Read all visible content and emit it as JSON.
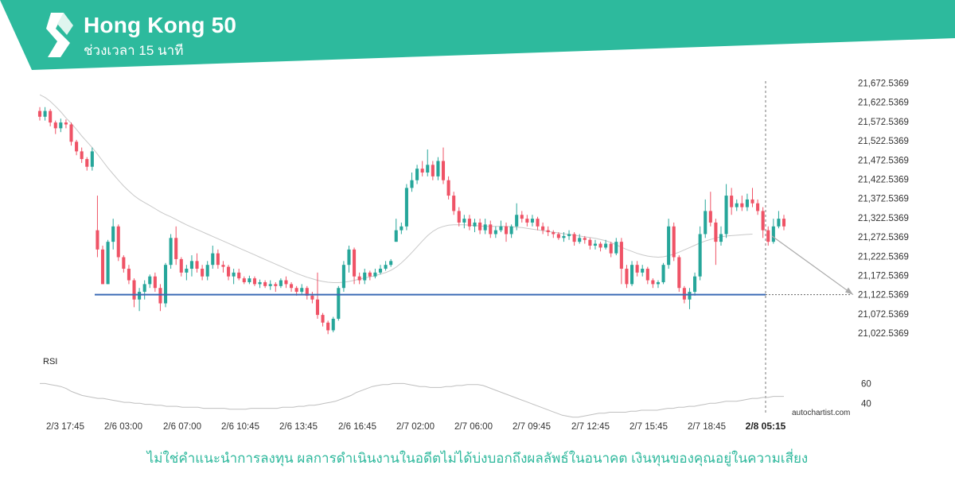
{
  "header": {
    "title": "Hong Kong 50",
    "subtitle": "ช่วงเวลา 15 นาที",
    "band_color": "#2dba9d"
  },
  "chart_data": {
    "type": "candlestick",
    "y_ticks": [
      "21,672.5369",
      "21,622.5369",
      "21,572.5369",
      "21,522.5369",
      "21,472.5369",
      "21,422.5369",
      "21,372.5369",
      "21,322.5369",
      "21,272.5369",
      "21,222.5369",
      "21,172.5369",
      "21,122.5369",
      "21,072.5369",
      "21,022.5369"
    ],
    "y_tick_values": [
      21672.5369,
      21622.5369,
      21572.5369,
      21522.5369,
      21472.5369,
      21422.5369,
      21372.5369,
      21322.5369,
      21272.5369,
      21222.5369,
      21172.5369,
      21122.5369,
      21072.5369,
      21022.5369
    ],
    "ylim": [
      21000,
      21690
    ],
    "x_ticks": [
      "2/3 17:45",
      "2/6 03:00",
      "2/6 07:00",
      "2/6 10:45",
      "2/6 13:45",
      "2/6 16:45",
      "2/7 02:00",
      "2/7 06:00",
      "2/7 09:45",
      "2/7 12:45",
      "2/7 15:45",
      "2/7 18:45",
      "2/8 05:15"
    ],
    "x_highlight": "2/8 05:15",
    "support_level": 21122.5369,
    "colors": {
      "up": "#26a69a",
      "down": "#ef5366",
      "support": "#3b6ab5",
      "ma": "#c8c8c8"
    },
    "candles": [
      [
        21600,
        21585,
        21610,
        21575
      ],
      [
        21585,
        21600,
        21610,
        21575
      ],
      [
        21600,
        21570,
        21605,
        21560
      ],
      [
        21570,
        21555,
        21575,
        21540
      ],
      [
        21555,
        21570,
        21580,
        21545
      ],
      [
        21570,
        21565,
        21578,
        21555
      ],
      [
        21565,
        21520,
        21570,
        21510
      ],
      [
        21520,
        21495,
        21525,
        21485
      ],
      [
        21495,
        21475,
        21505,
        21465
      ],
      [
        21475,
        21455,
        21480,
        21445
      ],
      [
        21455,
        21495,
        21505,
        21445
      ],
      [
        21290,
        21240,
        21380,
        21220
      ],
      [
        21240,
        21150,
        21250,
        21150
      ],
      [
        21150,
        21260,
        21265,
        21150
      ],
      [
        21260,
        21300,
        21320,
        21240
      ],
      [
        21300,
        21220,
        21305,
        21210
      ],
      [
        21220,
        21190,
        21225,
        21180
      ],
      [
        21190,
        21160,
        21200,
        21150
      ],
      [
        21160,
        21110,
        21165,
        21090
      ],
      [
        21110,
        21130,
        21140,
        21080
      ],
      [
        21130,
        21150,
        21160,
        21110
      ],
      [
        21150,
        21170,
        21175,
        21140
      ],
      [
        21170,
        21140,
        21180,
        21130
      ],
      [
        21140,
        21100,
        21150,
        21080
      ],
      [
        21100,
        21200,
        21205,
        21090
      ],
      [
        21200,
        21270,
        21280,
        21190
      ],
      [
        21270,
        21215,
        21300,
        21200
      ],
      [
        21215,
        21180,
        21220,
        21170
      ],
      [
        21180,
        21190,
        21200,
        21160
      ],
      [
        21190,
        21210,
        21225,
        21170
      ],
      [
        21210,
        21190,
        21230,
        21180
      ],
      [
        21190,
        21170,
        21200,
        21160
      ],
      [
        21170,
        21200,
        21210,
        21160
      ],
      [
        21200,
        21230,
        21250,
        21190
      ],
      [
        21230,
        21200,
        21240,
        21190
      ],
      [
        21200,
        21195,
        21210,
        21180
      ],
      [
        21195,
        21170,
        21200,
        21160
      ],
      [
        21170,
        21180,
        21190,
        21150
      ],
      [
        21180,
        21165,
        21190,
        21160
      ],
      [
        21165,
        21155,
        21170,
        21150
      ],
      [
        21155,
        21165,
        21172,
        21150
      ],
      [
        21165,
        21150,
        21170,
        21145
      ],
      [
        21150,
        21155,
        21162,
        21140
      ],
      [
        21155,
        21145,
        21160,
        21140
      ],
      [
        21145,
        21150,
        21160,
        21135
      ],
      [
        21150,
        21145,
        21155,
        21130
      ],
      [
        21145,
        21160,
        21165,
        21140
      ],
      [
        21160,
        21150,
        21170,
        21140
      ],
      [
        21150,
        21140,
        21155,
        21130
      ],
      [
        21140,
        21130,
        21145,
        21120
      ],
      [
        21130,
        21140,
        21150,
        21125
      ],
      [
        21140,
        21120,
        21145,
        21110
      ],
      [
        21120,
        21110,
        21130,
        21100
      ],
      [
        21110,
        21070,
        21180,
        21060
      ],
      [
        21070,
        21050,
        21075,
        21040
      ],
      [
        21050,
        21030,
        21055,
        21020
      ],
      [
        21030,
        21060,
        21065,
        21025
      ],
      [
        21060,
        21140,
        21145,
        21055
      ],
      [
        21140,
        21200,
        21210,
        21130
      ],
      [
        21200,
        21240,
        21250,
        21180
      ],
      [
        21240,
        21170,
        21245,
        21150
      ],
      [
        21170,
        21160,
        21180,
        21150
      ],
      [
        21160,
        21180,
        21190,
        21150
      ],
      [
        21180,
        21170,
        21185,
        21160
      ],
      [
        21170,
        21180,
        21190,
        21165
      ],
      [
        21180,
        21190,
        21200,
        21175
      ],
      [
        21190,
        21200,
        21210,
        21185
      ],
      [
        21200,
        21210,
        21215,
        21195
      ],
      [
        21260,
        21290,
        21320,
        21260
      ],
      [
        21290,
        21300,
        21310,
        21280
      ],
      [
        21300,
        21400,
        21410,
        21290
      ],
      [
        21400,
        21420,
        21440,
        21390
      ],
      [
        21420,
        21450,
        21460,
        21410
      ],
      [
        21450,
        21440,
        21470,
        21430
      ],
      [
        21440,
        21460,
        21500,
        21430
      ],
      [
        21460,
        21430,
        21470,
        21420
      ],
      [
        21430,
        21470,
        21480,
        21420
      ],
      [
        21470,
        21420,
        21505,
        21410
      ],
      [
        21420,
        21380,
        21430,
        21370
      ],
      [
        21380,
        21340,
        21390,
        21330
      ],
      [
        21340,
        21310,
        21350,
        21300
      ],
      [
        21310,
        21320,
        21330,
        21295
      ],
      [
        21320,
        21300,
        21330,
        21290
      ],
      [
        21300,
        21310,
        21320,
        21285
      ],
      [
        21310,
        21290,
        21320,
        21280
      ],
      [
        21290,
        21305,
        21320,
        21280
      ],
      [
        21305,
        21280,
        21315,
        21270
      ],
      [
        21280,
        21290,
        21300,
        21270
      ],
      [
        21290,
        21300,
        21315,
        21285
      ],
      [
        21300,
        21280,
        21310,
        21260
      ],
      [
        21280,
        21300,
        21305,
        21270
      ],
      [
        21300,
        21330,
        21360,
        21290
      ],
      [
        21330,
        21320,
        21340,
        21310
      ],
      [
        21320,
        21310,
        21330,
        21300
      ],
      [
        21310,
        21320,
        21330,
        21300
      ],
      [
        21320,
        21300,
        21325,
        21290
      ],
      [
        21300,
        21290,
        21310,
        21280
      ],
      [
        21290,
        21285,
        21300,
        21275
      ],
      [
        21285,
        21280,
        21290,
        21270
      ],
      [
        21280,
        21270,
        21285,
        21265
      ],
      [
        21270,
        21275,
        21285,
        21260
      ],
      [
        21275,
        21280,
        21290,
        21265
      ],
      [
        21280,
        21260,
        21285,
        21250
      ],
      [
        21260,
        21270,
        21280,
        21255
      ],
      [
        21270,
        21265,
        21275,
        21255
      ],
      [
        21265,
        21250,
        21270,
        21240
      ],
      [
        21250,
        21255,
        21265,
        21240
      ],
      [
        21255,
        21245,
        21260,
        21235
      ],
      [
        21245,
        21255,
        21265,
        21240
      ],
      [
        21255,
        21230,
        21260,
        21220
      ],
      [
        21230,
        21260,
        21270,
        21225
      ],
      [
        21260,
        21190,
        21270,
        21150
      ],
      [
        21190,
        21150,
        21200,
        21140
      ],
      [
        21150,
        21200,
        21210,
        21145
      ],
      [
        21200,
        21180,
        21210,
        21170
      ],
      [
        21180,
        21190,
        21200,
        21170
      ],
      [
        21190,
        21160,
        21195,
        21150
      ],
      [
        21160,
        21150,
        21165,
        21140
      ],
      [
        21150,
        21155,
        21160,
        21140
      ],
      [
        21155,
        21200,
        21205,
        21150
      ],
      [
        21200,
        21300,
        21320,
        21190
      ],
      [
        21300,
        21220,
        21310,
        21210
      ],
      [
        21220,
        21140,
        21225,
        21130
      ],
      [
        21140,
        21110,
        21145,
        21100
      ],
      [
        21110,
        21130,
        21140,
        21085
      ],
      [
        21130,
        21170,
        21180,
        21120
      ],
      [
        21170,
        21280,
        21300,
        21160
      ],
      [
        21280,
        21340,
        21370,
        21270
      ],
      [
        21340,
        21310,
        21390,
        21300
      ],
      [
        21310,
        21260,
        21320,
        21200
      ],
      [
        21260,
        21280,
        21300,
        21250
      ],
      [
        21280,
        21380,
        21410,
        21270
      ],
      [
        21380,
        21350,
        21400,
        21330
      ],
      [
        21350,
        21360,
        21370,
        21340
      ],
      [
        21360,
        21350,
        21380,
        21340
      ],
      [
        21350,
        21370,
        21385,
        21340
      ],
      [
        21370,
        21360,
        21400,
        21350
      ],
      [
        21360,
        21340,
        21370,
        21330
      ],
      [
        21340,
        21290,
        21350,
        21270
      ],
      [
        21290,
        21260,
        21300,
        21250
      ],
      [
        21260,
        21300,
        21320,
        21255
      ],
      [
        21300,
        21320,
        21340,
        21295
      ],
      [
        21320,
        21300,
        21330,
        21290
      ]
    ],
    "ma": [
      21642,
      21635,
      21625,
      21612,
      21598,
      21582,
      21568,
      21552,
      21535,
      21520,
      21505,
      21488,
      21470,
      21452,
      21436,
      21420,
      21405,
      21392,
      21380,
      21370,
      21362,
      21354,
      21346,
      21338,
      21331,
      21325,
      21318,
      21311,
      21304,
      21298,
      21292,
      21286,
      21280,
      21274,
      21268,
      21262,
      21256,
      21250,
      21244,
      21238,
      21232,
      21226,
      21220,
      21214,
      21208,
      21202,
      21196,
      21190,
      21184,
      21178,
      21173,
      21168,
      21164,
      21160,
      21157,
      21155,
      21154,
      21154,
      21155,
      21157,
      21160,
      21163,
      21166,
      21169,
      21172,
      21176,
      21180,
      21186,
      21194,
      21205,
      21218,
      21232,
      21247,
      21262,
      21276,
      21287,
      21295,
      21300,
      21303,
      21304,
      21304,
      21304,
      21303,
      21302,
      21301,
      21300,
      21300,
      21300,
      21300,
      21300,
      21299,
      21298,
      21297,
      21295,
      21293,
      21291,
      21289,
      21287,
      21285,
      21283,
      21281,
      21279,
      21277,
      21275,
      21273,
      21271,
      21269,
      21266,
      21263,
      21258,
      21252,
      21246,
      21240,
      21235,
      21230,
      21226,
      21223,
      21221,
      21220,
      21221,
      21224,
      21228,
      21233,
      21239,
      21245,
      21251,
      21257,
      21262,
      21266,
      21270,
      21273,
      21275,
      21276,
      21277,
      21278,
      21279,
      21280
    ],
    "rsi": {
      "title": "RSI",
      "ticks": [
        "60",
        "40"
      ],
      "tick_values": [
        60,
        40
      ],
      "ylim": [
        25,
        70
      ],
      "values": [
        60,
        60,
        59,
        58,
        57,
        55,
        52,
        50,
        48,
        47,
        46,
        45,
        45,
        44,
        43,
        42,
        41,
        41,
        40,
        40,
        39,
        39,
        38,
        38,
        37,
        37,
        37,
        36,
        36,
        36,
        36,
        35,
        35,
        35,
        35,
        35,
        34,
        34,
        34,
        34,
        35,
        35,
        35,
        35,
        35,
        35,
        36,
        36,
        36,
        37,
        37,
        38,
        38,
        39,
        40,
        41,
        42,
        44,
        46,
        48,
        51,
        53,
        55,
        57,
        58,
        59,
        59,
        60,
        60,
        60,
        59,
        58,
        57,
        57,
        56,
        56,
        56,
        57,
        57,
        58,
        58,
        59,
        59,
        59,
        58,
        56,
        54,
        52,
        50,
        48,
        46,
        44,
        42,
        40,
        38,
        36,
        34,
        32,
        30,
        28,
        27,
        26,
        26,
        27,
        28,
        29,
        30,
        30,
        31,
        31,
        31,
        31,
        32,
        32,
        33,
        33,
        33,
        33,
        34,
        35,
        35,
        36,
        36,
        37,
        37,
        38,
        39,
        40,
        40,
        41,
        42,
        42,
        42,
        43,
        44,
        45,
        45,
        46,
        46,
        47,
        47,
        47
      ]
    }
  },
  "watermark": "autochartist.com",
  "disclaimer": "ไม่ใช่คำแนะนำการลงทุน ผลการดำเนินงานในอดีตไม่ได้บ่งบอกถึงผลลัพธ์ในอนาคต เงินทุนของคุณอยู่ในความเสี่ยง"
}
